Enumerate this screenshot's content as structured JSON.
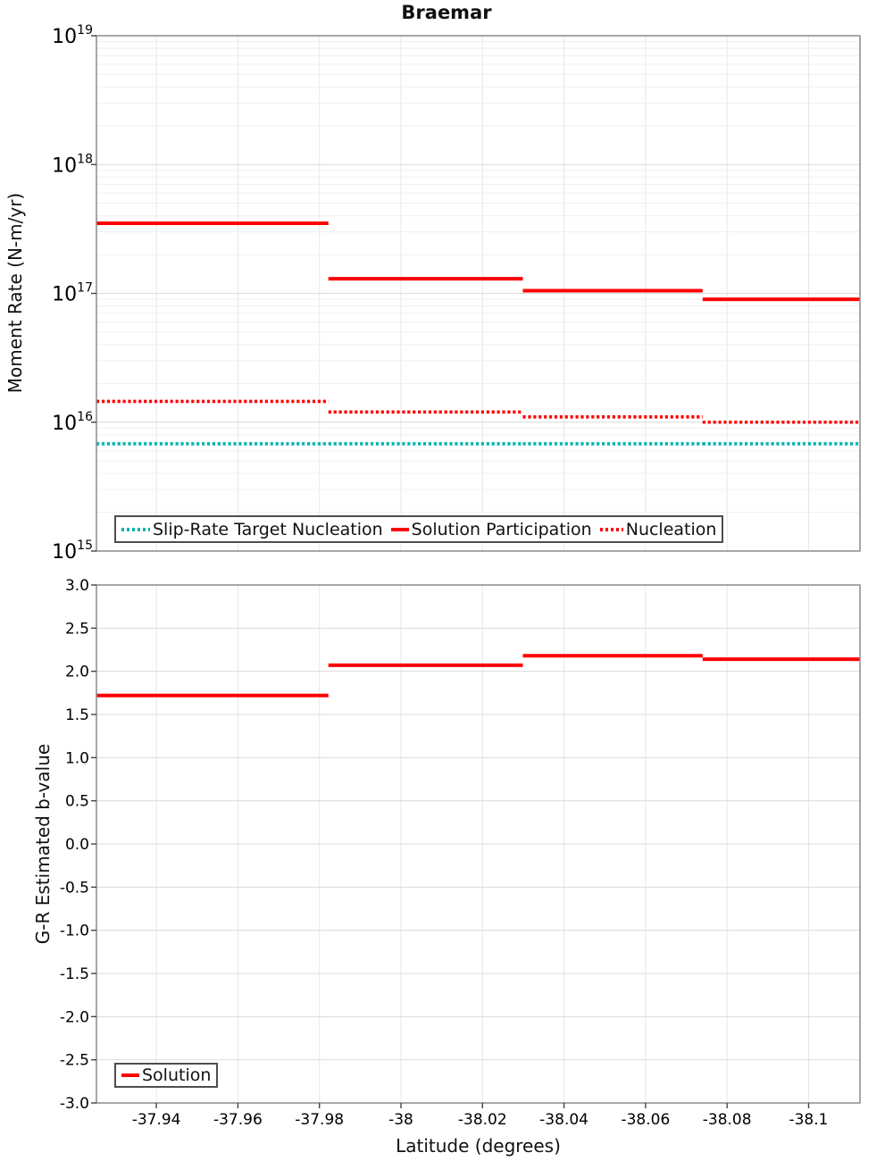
{
  "title": "Braemar",
  "colors": {
    "red": "#ff0000",
    "cyan": "#00b4b4",
    "grid_minor": "#efefef",
    "grid_major": "#dcdcdc",
    "grid_vertical": "#e7e7e7",
    "axis_border": "#8a8a8a",
    "tick": "#444444",
    "text": "#000000",
    "legend_border": "#4d4d4d"
  },
  "top_panel": {
    "ylabel": "Moment Rate (N-m/yr)",
    "ytick_exponents": [
      19,
      18,
      17,
      16,
      15
    ],
    "legend": [
      {
        "label": "Slip-Rate Target Nucleation",
        "color": "#00b4b4",
        "style": "dotted",
        "swatch_width": 32
      },
      {
        "label": "Solution Participation",
        "color": "#ff0000",
        "style": "solid",
        "swatch_width": 20
      },
      {
        "label": "Nucleation",
        "color": "#ff0000",
        "style": "dotted",
        "swatch_width": 26
      }
    ]
  },
  "bottom_panel": {
    "ylabel": "G-R Estimated b-value",
    "ytick_labels": [
      "3.0",
      "2.5",
      "2.0",
      "1.5",
      "1.0",
      "0.5",
      "0.0",
      "-0.5",
      "-1.0",
      "-1.5",
      "-2.0",
      "-2.5",
      "-3.0"
    ],
    "legend": [
      {
        "label": "Solution",
        "color": "#ff0000",
        "style": "solid",
        "swatch_width": 20
      }
    ]
  },
  "x_axis": {
    "label": "Latitude (degrees)",
    "ticks": [
      {
        "value": -37.94,
        "label": "-37.94"
      },
      {
        "value": -37.96,
        "label": "-37.96"
      },
      {
        "value": -37.98,
        "label": "-37.98"
      },
      {
        "value": -38.0,
        "label": "-38"
      },
      {
        "value": -38.02,
        "label": "-38.02"
      },
      {
        "value": -38.04,
        "label": "-38.04"
      },
      {
        "value": -38.06,
        "label": "-38.06"
      },
      {
        "value": -38.08,
        "label": "-38.08"
      },
      {
        "value": -38.1,
        "label": "-38.1"
      }
    ]
  },
  "chart_data": [
    {
      "type": "line",
      "subtype": "step",
      "title": "Braemar",
      "ylabel": "Moment Rate (N-m/yr)",
      "yscale": "log",
      "ylim": [
        1000000000000000.0,
        1e+19
      ],
      "xlim": [
        -37.9253,
        -38.1126
      ],
      "xlabel": "",
      "grid": true,
      "legend_position": "bottom-center",
      "x_edges": [
        -37.9253,
        -37.9822,
        -38.0299,
        -38.074,
        -38.1126
      ],
      "series": [
        {
          "name": "Slip-Rate Target Nucleation",
          "color": "#00b4b4",
          "style": "dotted",
          "values": [
            6800000000000000.0,
            6800000000000000.0,
            6800000000000000.0,
            6800000000000000.0
          ]
        },
        {
          "name": "Solution Participation",
          "color": "#ff0000",
          "style": "solid",
          "values": [
            3.5e+17,
            1.3e+17,
            1.05e+17,
            9e+16
          ]
        },
        {
          "name": "Nucleation",
          "color": "#ff0000",
          "style": "dotted",
          "values": [
            1.45e+16,
            1.2e+16,
            1.1e+16,
            1e+16
          ]
        }
      ]
    },
    {
      "type": "line",
      "subtype": "step",
      "title": "",
      "ylabel": "G-R Estimated b-value",
      "yscale": "linear",
      "ylim": [
        -3.0,
        3.0
      ],
      "ytick_step": 0.5,
      "xlim": [
        -37.9253,
        -38.1126
      ],
      "xlabel": "Latitude (degrees)",
      "grid": true,
      "legend_position": "bottom-left",
      "x_edges": [
        -37.9253,
        -37.9822,
        -38.0299,
        -38.074,
        -38.1126
      ],
      "series": [
        {
          "name": "Solution",
          "color": "#ff0000",
          "style": "solid",
          "values": [
            1.72,
            2.07,
            2.18,
            2.14
          ]
        }
      ]
    }
  ]
}
